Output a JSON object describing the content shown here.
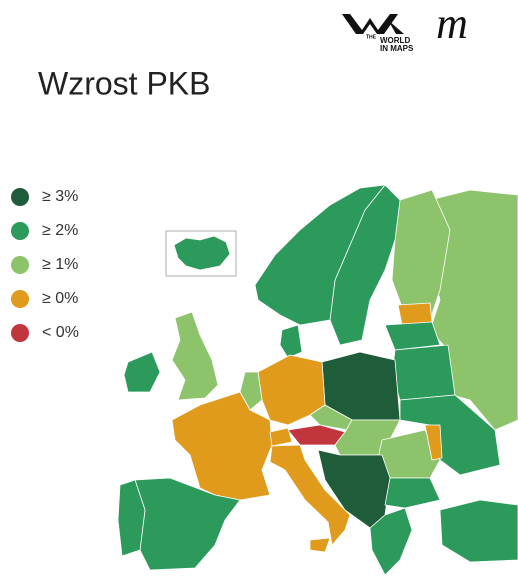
{
  "title": "Wzrost PKB",
  "logo": {
    "top": "THE",
    "line1": "WORLD",
    "line2": "IN MAPS",
    "script": "m"
  },
  "legend": [
    {
      "label": "≥ 3%",
      "color": "#1f5c3a"
    },
    {
      "label": "≥ 2%",
      "color": "#2b9a5b"
    },
    {
      "label": "≥ 1%",
      "color": "#8dc46b"
    },
    {
      "label": "≥ 0%",
      "color": "#e09a1c"
    },
    {
      "label": "< 0%",
      "color": "#c1363d"
    }
  ]
}
